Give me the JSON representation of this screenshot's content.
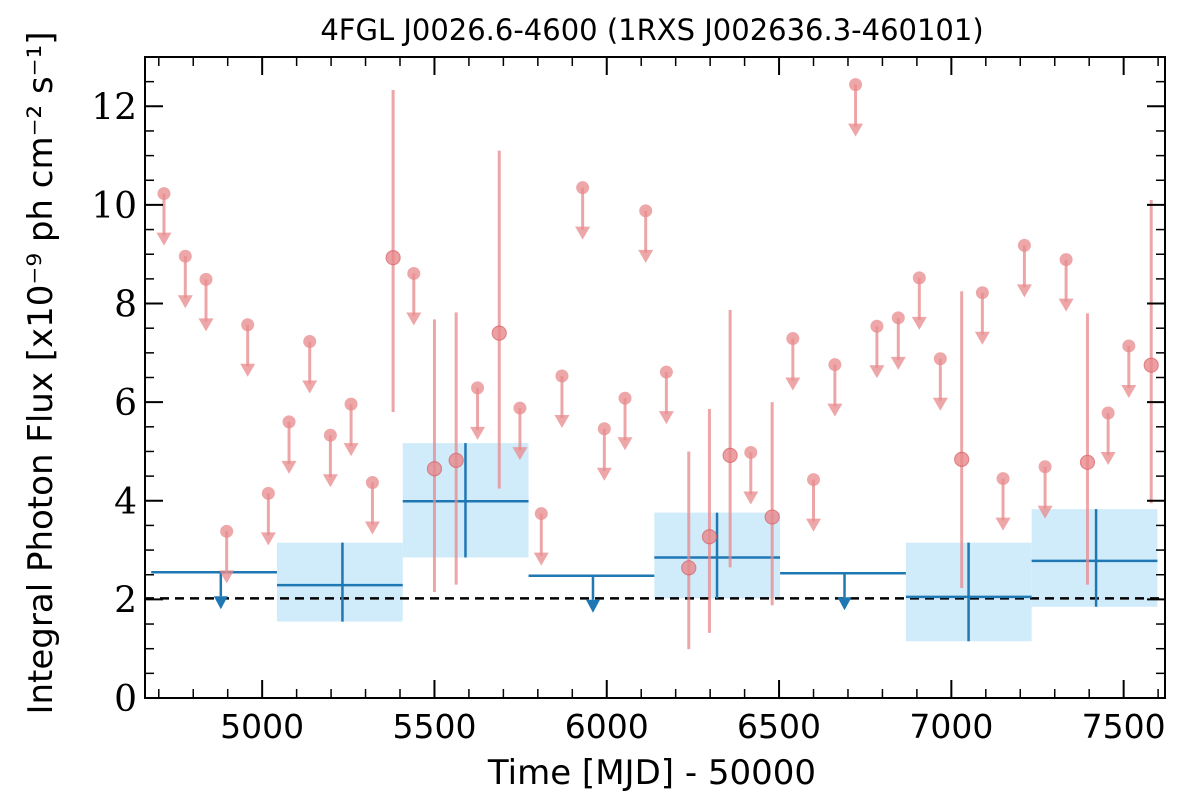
{
  "chart_data": {
    "type": "scatter",
    "title": "4FGL J0026.6-4600 (1RXS J002636.3-460101)",
    "xlabel": "Time [MJD] - 50000",
    "ylabel": "Integral Photon Flux [x10⁻⁹ ph cm⁻² s⁻¹]",
    "xlim": [
      4660,
      7620
    ],
    "ylim": [
      0,
      13
    ],
    "x_ticks": [
      5000,
      5500,
      6000,
      6500,
      7000,
      7500
    ],
    "y_ticks": [
      0,
      2,
      4,
      6,
      8,
      10,
      12
    ],
    "reference_line": 2.02,
    "colors": {
      "monthly": "#e8898c",
      "yearly": "#1f77b4",
      "yearly_band": "#d0ecfb",
      "reference": "#000000"
    },
    "series": [
      {
        "kind": "monthly",
        "detections": [
          {
            "x": 5380,
            "y": 8.93,
            "ylo": 5.8,
            "yhi": 12.33
          },
          {
            "x": 5500,
            "y": 4.65,
            "ylo": 2.15,
            "yhi": 7.68
          },
          {
            "x": 5563,
            "y": 4.82,
            "ylo": 2.3,
            "yhi": 7.82
          },
          {
            "x": 5688,
            "y": 7.4,
            "ylo": 4.25,
            "yhi": 11.1
          },
          {
            "x": 6238,
            "y": 2.64,
            "ylo": 0.99,
            "yhi": 5.0
          },
          {
            "x": 6298,
            "y": 3.27,
            "ylo": 1.32,
            "yhi": 5.86
          },
          {
            "x": 6358,
            "y": 4.92,
            "ylo": 2.65,
            "yhi": 7.87
          },
          {
            "x": 6480,
            "y": 3.67,
            "ylo": 1.88,
            "yhi": 6.0
          },
          {
            "x": 7030,
            "y": 4.84,
            "ylo": 2.23,
            "yhi": 8.25
          },
          {
            "x": 7395,
            "y": 4.78,
            "ylo": 2.3,
            "yhi": 7.8
          },
          {
            "x": 7580,
            "y": 6.75,
            "ylo": 3.95,
            "yhi": 10.1
          }
        ],
        "upper_limits": [
          {
            "x": 4715,
            "y": 10.23
          },
          {
            "x": 4777,
            "y": 8.96
          },
          {
            "x": 4837,
            "y": 8.49
          },
          {
            "x": 4897,
            "y": 3.38
          },
          {
            "x": 4958,
            "y": 7.57
          },
          {
            "x": 5018,
            "y": 4.15
          },
          {
            "x": 5078,
            "y": 5.6
          },
          {
            "x": 5138,
            "y": 7.23
          },
          {
            "x": 5198,
            "y": 5.33
          },
          {
            "x": 5258,
            "y": 5.96
          },
          {
            "x": 5320,
            "y": 4.37
          },
          {
            "x": 5440,
            "y": 8.61
          },
          {
            "x": 5625,
            "y": 6.29
          },
          {
            "x": 5748,
            "y": 5.88
          },
          {
            "x": 5810,
            "y": 3.74
          },
          {
            "x": 5870,
            "y": 6.53
          },
          {
            "x": 5930,
            "y": 10.35
          },
          {
            "x": 5993,
            "y": 5.46
          },
          {
            "x": 6053,
            "y": 6.08
          },
          {
            "x": 6113,
            "y": 9.88
          },
          {
            "x": 6173,
            "y": 6.61
          },
          {
            "x": 6418,
            "y": 4.98
          },
          {
            "x": 6540,
            "y": 7.29
          },
          {
            "x": 6600,
            "y": 4.43
          },
          {
            "x": 6662,
            "y": 6.76
          },
          {
            "x": 6722,
            "y": 12.44
          },
          {
            "x": 6784,
            "y": 7.54
          },
          {
            "x": 6846,
            "y": 7.71
          },
          {
            "x": 6907,
            "y": 8.52
          },
          {
            "x": 6968,
            "y": 6.88
          },
          {
            "x": 7090,
            "y": 8.22
          },
          {
            "x": 7150,
            "y": 4.45
          },
          {
            "x": 7212,
            "y": 9.18
          },
          {
            "x": 7272,
            "y": 4.69
          },
          {
            "x": 7333,
            "y": 8.89
          },
          {
            "x": 7455,
            "y": 5.78
          },
          {
            "x": 7515,
            "y": 7.14
          }
        ]
      },
      {
        "kind": "yearly",
        "detections": [
          {
            "x0": 5043,
            "x1": 5408,
            "x": 5233,
            "y": 2.29,
            "ylo": 1.55,
            "yhi": 3.15
          },
          {
            "x0": 5408,
            "x1": 5773,
            "x": 5590,
            "y": 3.99,
            "ylo": 2.85,
            "yhi": 5.17
          },
          {
            "x0": 6138,
            "x1": 6503,
            "x": 6320,
            "y": 2.85,
            "ylo": 2.02,
            "yhi": 3.76
          },
          {
            "x0": 6868,
            "x1": 7233,
            "x": 7050,
            "y": 2.05,
            "ylo": 1.15,
            "yhi": 3.15
          },
          {
            "x0": 7233,
            "x1": 7598,
            "x": 7420,
            "y": 2.78,
            "ylo": 1.85,
            "yhi": 3.83
          }
        ],
        "upper_limits": [
          {
            "x0": 4678,
            "x1": 5043,
            "x": 4880,
            "y": 2.55
          },
          {
            "x0": 5773,
            "x1": 6138,
            "x": 5960,
            "y": 2.48
          },
          {
            "x0": 6503,
            "x1": 6868,
            "x": 6690,
            "y": 2.53
          }
        ]
      }
    ]
  }
}
